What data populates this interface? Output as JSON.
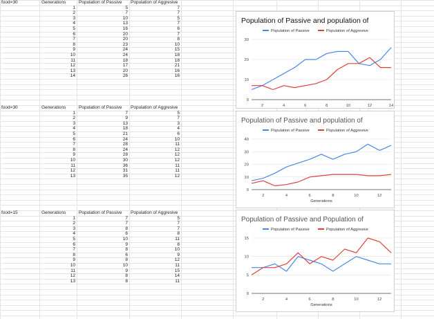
{
  "blocks": [
    {
      "header": [
        "food=30",
        "Generations",
        "Population of Passive",
        "Population of Aggresive"
      ],
      "rows": [
        [
          1,
          5,
          7
        ],
        [
          2,
          7,
          7
        ],
        [
          3,
          10,
          5
        ],
        [
          4,
          13,
          7
        ],
        [
          5,
          16,
          6
        ],
        [
          6,
          20,
          7
        ],
        [
          7,
          20,
          8
        ],
        [
          8,
          23,
          10
        ],
        [
          9,
          24,
          15
        ],
        [
          10,
          24,
          18
        ],
        [
          11,
          18,
          18
        ],
        [
          12,
          17,
          21
        ],
        [
          13,
          20,
          16
        ],
        [
          14,
          26,
          16
        ]
      ]
    },
    {
      "header": [
        "food=30",
        "Generations",
        "Population of Passive",
        "Population of Aggresive"
      ],
      "rows": [
        [
          1,
          7,
          5
        ],
        [
          2,
          9,
          7
        ],
        [
          3,
          13,
          3
        ],
        [
          4,
          18,
          4
        ],
        [
          5,
          21,
          6
        ],
        [
          6,
          24,
          10
        ],
        [
          7,
          28,
          11
        ],
        [
          8,
          24,
          12
        ],
        [
          9,
          28,
          12
        ],
        [
          10,
          30,
          12
        ],
        [
          11,
          36,
          11
        ],
        [
          12,
          31,
          11
        ],
        [
          13,
          35,
          12
        ]
      ]
    },
    {
      "header": [
        "food=15",
        "Generations",
        "Population of Passive",
        "Population of Aggresive"
      ],
      "rows": [
        [
          1,
          7,
          5
        ],
        [
          2,
          7,
          7
        ],
        [
          3,
          8,
          7
        ],
        [
          4,
          6,
          8
        ],
        [
          5,
          10,
          11
        ],
        [
          6,
          9,
          8
        ],
        [
          7,
          8,
          10
        ],
        [
          8,
          6,
          9
        ],
        [
          9,
          8,
          12
        ],
        [
          10,
          10,
          11
        ],
        [
          11,
          9,
          15
        ],
        [
          12,
          8,
          14
        ],
        [
          13,
          8,
          11
        ]
      ]
    }
  ],
  "colors": {
    "passive": "#4a86e8",
    "aggressive": "#e0403a",
    "grid": "#e0e0e0",
    "axis": "#444444"
  },
  "chart_data": [
    {
      "type": "line",
      "title": "Population of Passive and population of",
      "xlabel": "",
      "ylabel": "",
      "legend_position": "top",
      "x": [
        1,
        2,
        3,
        4,
        5,
        6,
        7,
        8,
        9,
        10,
        11,
        12,
        13,
        14
      ],
      "x_ticks": [
        2,
        4,
        6,
        8,
        10,
        12,
        14
      ],
      "xlim": [
        1,
        14
      ],
      "ylim": [
        0,
        30
      ],
      "y_ticks": [
        0,
        10,
        20,
        30
      ],
      "series": [
        {
          "name": "Population of Passive",
          "values": [
            5,
            7,
            10,
            13,
            16,
            20,
            20,
            23,
            24,
            24,
            18,
            17,
            20,
            26
          ]
        },
        {
          "name": "Population of Aggresive",
          "values": [
            7,
            7,
            5,
            7,
            6,
            7,
            8,
            10,
            15,
            18,
            18,
            21,
            16,
            16
          ]
        }
      ]
    },
    {
      "type": "line",
      "title": "Population of Passive and population of",
      "xlabel": "Generations",
      "ylabel": "",
      "legend_position": "top",
      "x": [
        1,
        2,
        3,
        4,
        5,
        6,
        7,
        8,
        9,
        10,
        11,
        12,
        13
      ],
      "x_ticks": [
        2,
        4,
        6,
        8,
        10,
        12
      ],
      "xlim": [
        1,
        13
      ],
      "ylim": [
        0,
        40
      ],
      "y_ticks": [
        0,
        10,
        20,
        30,
        40
      ],
      "series": [
        {
          "name": "Population of Passive",
          "values": [
            7,
            9,
            13,
            18,
            21,
            24,
            28,
            24,
            28,
            30,
            36,
            31,
            35
          ]
        },
        {
          "name": "Population of Aggresive",
          "values": [
            5,
            7,
            3,
            4,
            6,
            10,
            11,
            12,
            12,
            12,
            11,
            11,
            12
          ]
        }
      ]
    },
    {
      "type": "line",
      "title": "Population of Passive and Population of",
      "xlabel": "Generations",
      "ylabel": "",
      "legend_position": "top",
      "x": [
        1,
        2,
        3,
        4,
        5,
        6,
        7,
        8,
        9,
        10,
        11,
        12,
        13
      ],
      "x_ticks": [
        2,
        4,
        6,
        8,
        10,
        12
      ],
      "xlim": [
        1,
        13
      ],
      "ylim": [
        0,
        15
      ],
      "y_ticks": [
        0,
        5,
        10,
        15
      ],
      "series": [
        {
          "name": "Population of Passive",
          "values": [
            7,
            7,
            8,
            6,
            10,
            9,
            8,
            6,
            8,
            10,
            9,
            8,
            8
          ]
        },
        {
          "name": "Population of Aggresive",
          "values": [
            5,
            7,
            7,
            8,
            11,
            8,
            10,
            9,
            12,
            11,
            15,
            14,
            11
          ]
        }
      ]
    }
  ]
}
